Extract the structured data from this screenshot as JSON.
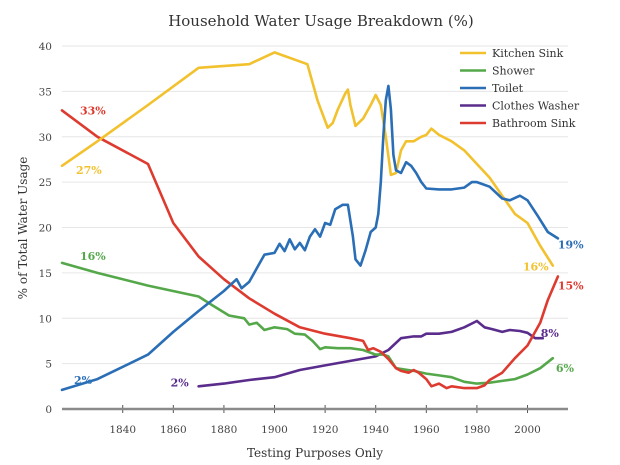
{
  "chart_data": {
    "type": "line",
    "title": "Household Water Usage Breakdown (%)",
    "xlabel": "Testing Purposes Only",
    "ylabel": "% of Total Water Usage",
    "xlim": [
      1816,
      2016
    ],
    "ylim": [
      0,
      40
    ],
    "xticks": [
      1840,
      1860,
      1880,
      1900,
      1920,
      1940,
      1960,
      1980,
      2000
    ],
    "xtick_labels": [
      "1840",
      "1860",
      "1880",
      "1900",
      "1920",
      "1940",
      "1960",
      "1980",
      "2000"
    ],
    "yticks": [
      0,
      5,
      10,
      15,
      20,
      25,
      30,
      35,
      40
    ],
    "ytick_labels": [
      "0",
      "5",
      "10",
      "15",
      "20",
      "25",
      "30",
      "35",
      "40"
    ],
    "grid": true,
    "legend_position": "top-right",
    "series": [
      {
        "name": "Kitchen Sink",
        "color": "#f2c12e",
        "start_label": "27%",
        "end_label": "16%",
        "points": [
          [
            1816,
            26.8
          ],
          [
            1830,
            29.5
          ],
          [
            1850,
            33.5
          ],
          [
            1870,
            37.6
          ],
          [
            1890,
            38
          ],
          [
            1900,
            39.3
          ],
          [
            1913,
            38
          ],
          [
            1917,
            34
          ],
          [
            1921,
            31
          ],
          [
            1923,
            31.5
          ],
          [
            1925,
            33
          ],
          [
            1928,
            34.8
          ],
          [
            1929,
            35.2
          ],
          [
            1930,
            33.5
          ],
          [
            1932,
            31.2
          ],
          [
            1935,
            32
          ],
          [
            1938,
            33.5
          ],
          [
            1940,
            34.6
          ],
          [
            1942,
            33.5
          ],
          [
            1944,
            30
          ],
          [
            1946,
            25.8
          ],
          [
            1948,
            26
          ],
          [
            1950,
            28.5
          ],
          [
            1952,
            29.5
          ],
          [
            1955,
            29.5
          ],
          [
            1958,
            30
          ],
          [
            1960,
            30.2
          ],
          [
            1962,
            30.9
          ],
          [
            1965,
            30.2
          ],
          [
            1970,
            29.5
          ],
          [
            1975,
            28.5
          ],
          [
            1980,
            27
          ],
          [
            1985,
            25.5
          ],
          [
            1990,
            23.5
          ],
          [
            1995,
            21.5
          ],
          [
            2000,
            20.5
          ],
          [
            2005,
            18
          ],
          [
            2010,
            15.8
          ]
        ]
      },
      {
        "name": "Shower",
        "color": "#55a84a",
        "start_label": "16%",
        "end_label": "6%",
        "points": [
          [
            1816,
            16.1
          ],
          [
            1830,
            15
          ],
          [
            1850,
            13.6
          ],
          [
            1870,
            12.4
          ],
          [
            1875,
            11.5
          ],
          [
            1882,
            10.3
          ],
          [
            1888,
            10
          ],
          [
            1890,
            9.3
          ],
          [
            1893,
            9.5
          ],
          [
            1896,
            8.7
          ],
          [
            1900,
            9
          ],
          [
            1905,
            8.8
          ],
          [
            1908,
            8.3
          ],
          [
            1912,
            8.2
          ],
          [
            1915,
            7.5
          ],
          [
            1918,
            6.6
          ],
          [
            1920,
            6.8
          ],
          [
            1925,
            6.7
          ],
          [
            1930,
            6.7
          ],
          [
            1935,
            6.5
          ],
          [
            1940,
            6
          ],
          [
            1943,
            6
          ],
          [
            1945,
            5.8
          ],
          [
            1948,
            4.5
          ],
          [
            1955,
            4.2
          ],
          [
            1960,
            3.9
          ],
          [
            1965,
            3.7
          ],
          [
            1970,
            3.5
          ],
          [
            1975,
            3
          ],
          [
            1980,
            2.8
          ],
          [
            1985,
            2.9
          ],
          [
            1990,
            3.1
          ],
          [
            1995,
            3.3
          ],
          [
            2000,
            3.8
          ],
          [
            2005,
            4.5
          ],
          [
            2010,
            5.6
          ]
        ]
      },
      {
        "name": "Toilet",
        "color": "#2a6eb6",
        "start_label": "2%",
        "end_label": "19%",
        "points": [
          [
            1816,
            2.1
          ],
          [
            1830,
            3.3
          ],
          [
            1850,
            6
          ],
          [
            1860,
            8.5
          ],
          [
            1870,
            10.8
          ],
          [
            1880,
            13
          ],
          [
            1885,
            14.3
          ],
          [
            1887,
            13.3
          ],
          [
            1890,
            14
          ],
          [
            1893,
            15.5
          ],
          [
            1896,
            17
          ],
          [
            1900,
            17.2
          ],
          [
            1902,
            18.2
          ],
          [
            1904,
            17.4
          ],
          [
            1906,
            18.7
          ],
          [
            1908,
            17.6
          ],
          [
            1910,
            18.3
          ],
          [
            1912,
            17.5
          ],
          [
            1914,
            19
          ],
          [
            1916,
            19.8
          ],
          [
            1918,
            19
          ],
          [
            1920,
            20.5
          ],
          [
            1922,
            20.3
          ],
          [
            1924,
            22
          ],
          [
            1927,
            22.5
          ],
          [
            1929,
            22.5
          ],
          [
            1931,
            19
          ],
          [
            1932,
            16.5
          ],
          [
            1934,
            15.8
          ],
          [
            1936,
            17.5
          ],
          [
            1938,
            19.5
          ],
          [
            1940,
            20
          ],
          [
            1941,
            21.5
          ],
          [
            1942,
            25
          ],
          [
            1943,
            30
          ],
          [
            1944,
            34
          ],
          [
            1945,
            35.6
          ],
          [
            1946,
            33
          ],
          [
            1947,
            28
          ],
          [
            1948,
            26.3
          ],
          [
            1950,
            26
          ],
          [
            1952,
            27.2
          ],
          [
            1954,
            26.8
          ],
          [
            1956,
            26
          ],
          [
            1958,
            25
          ],
          [
            1960,
            24.3
          ],
          [
            1965,
            24.2
          ],
          [
            1970,
            24.2
          ],
          [
            1975,
            24.4
          ],
          [
            1978,
            25
          ],
          [
            1980,
            25
          ],
          [
            1985,
            24.5
          ],
          [
            1990,
            23.2
          ],
          [
            1993,
            23
          ],
          [
            1997,
            23.5
          ],
          [
            2000,
            23
          ],
          [
            2004,
            21.3
          ],
          [
            2008,
            19.5
          ],
          [
            2012,
            18.8
          ]
        ]
      },
      {
        "name": "Clothes Washer",
        "color": "#5a2d8c",
        "start_label": "2%",
        "end_label": "8%",
        "points": [
          [
            1870,
            2.5
          ],
          [
            1880,
            2.8
          ],
          [
            1890,
            3.2
          ],
          [
            1900,
            3.5
          ],
          [
            1910,
            4.3
          ],
          [
            1920,
            4.8
          ],
          [
            1930,
            5.3
          ],
          [
            1940,
            5.8
          ],
          [
            1945,
            6.5
          ],
          [
            1950,
            7.8
          ],
          [
            1955,
            8
          ],
          [
            1958,
            8
          ],
          [
            1960,
            8.3
          ],
          [
            1965,
            8.3
          ],
          [
            1970,
            8.5
          ],
          [
            1975,
            9
          ],
          [
            1980,
            9.7
          ],
          [
            1983,
            9
          ],
          [
            1986,
            8.8
          ],
          [
            1990,
            8.5
          ],
          [
            1993,
            8.7
          ],
          [
            1997,
            8.6
          ],
          [
            2000,
            8.4
          ],
          [
            2003,
            7.8
          ],
          [
            2006,
            7.8
          ]
        ]
      },
      {
        "name": "Bathroom Sink",
        "color": "#de3b30",
        "start_label": "33%",
        "end_label": "15%",
        "points": [
          [
            1816,
            32.9
          ],
          [
            1830,
            30
          ],
          [
            1850,
            27
          ],
          [
            1860,
            20.5
          ],
          [
            1870,
            16.8
          ],
          [
            1880,
            14.3
          ],
          [
            1890,
            12.2
          ],
          [
            1900,
            10.5
          ],
          [
            1910,
            9
          ],
          [
            1920,
            8.3
          ],
          [
            1930,
            7.8
          ],
          [
            1935,
            7.5
          ],
          [
            1937,
            6.5
          ],
          [
            1939,
            6.7
          ],
          [
            1942,
            6.3
          ],
          [
            1945,
            5.5
          ],
          [
            1948,
            4.5
          ],
          [
            1950,
            4.2
          ],
          [
            1953,
            4
          ],
          [
            1955,
            4.3
          ],
          [
            1957,
            4
          ],
          [
            1960,
            3.3
          ],
          [
            1962,
            2.5
          ],
          [
            1965,
            2.8
          ],
          [
            1968,
            2.3
          ],
          [
            1970,
            2.5
          ],
          [
            1975,
            2.3
          ],
          [
            1980,
            2.3
          ],
          [
            1983,
            2.6
          ],
          [
            1985,
            3.2
          ],
          [
            1990,
            4
          ],
          [
            1995,
            5.6
          ],
          [
            2000,
            7
          ],
          [
            2005,
            9.5
          ],
          [
            2008,
            12
          ],
          [
            2012,
            14.6
          ]
        ]
      }
    ]
  }
}
